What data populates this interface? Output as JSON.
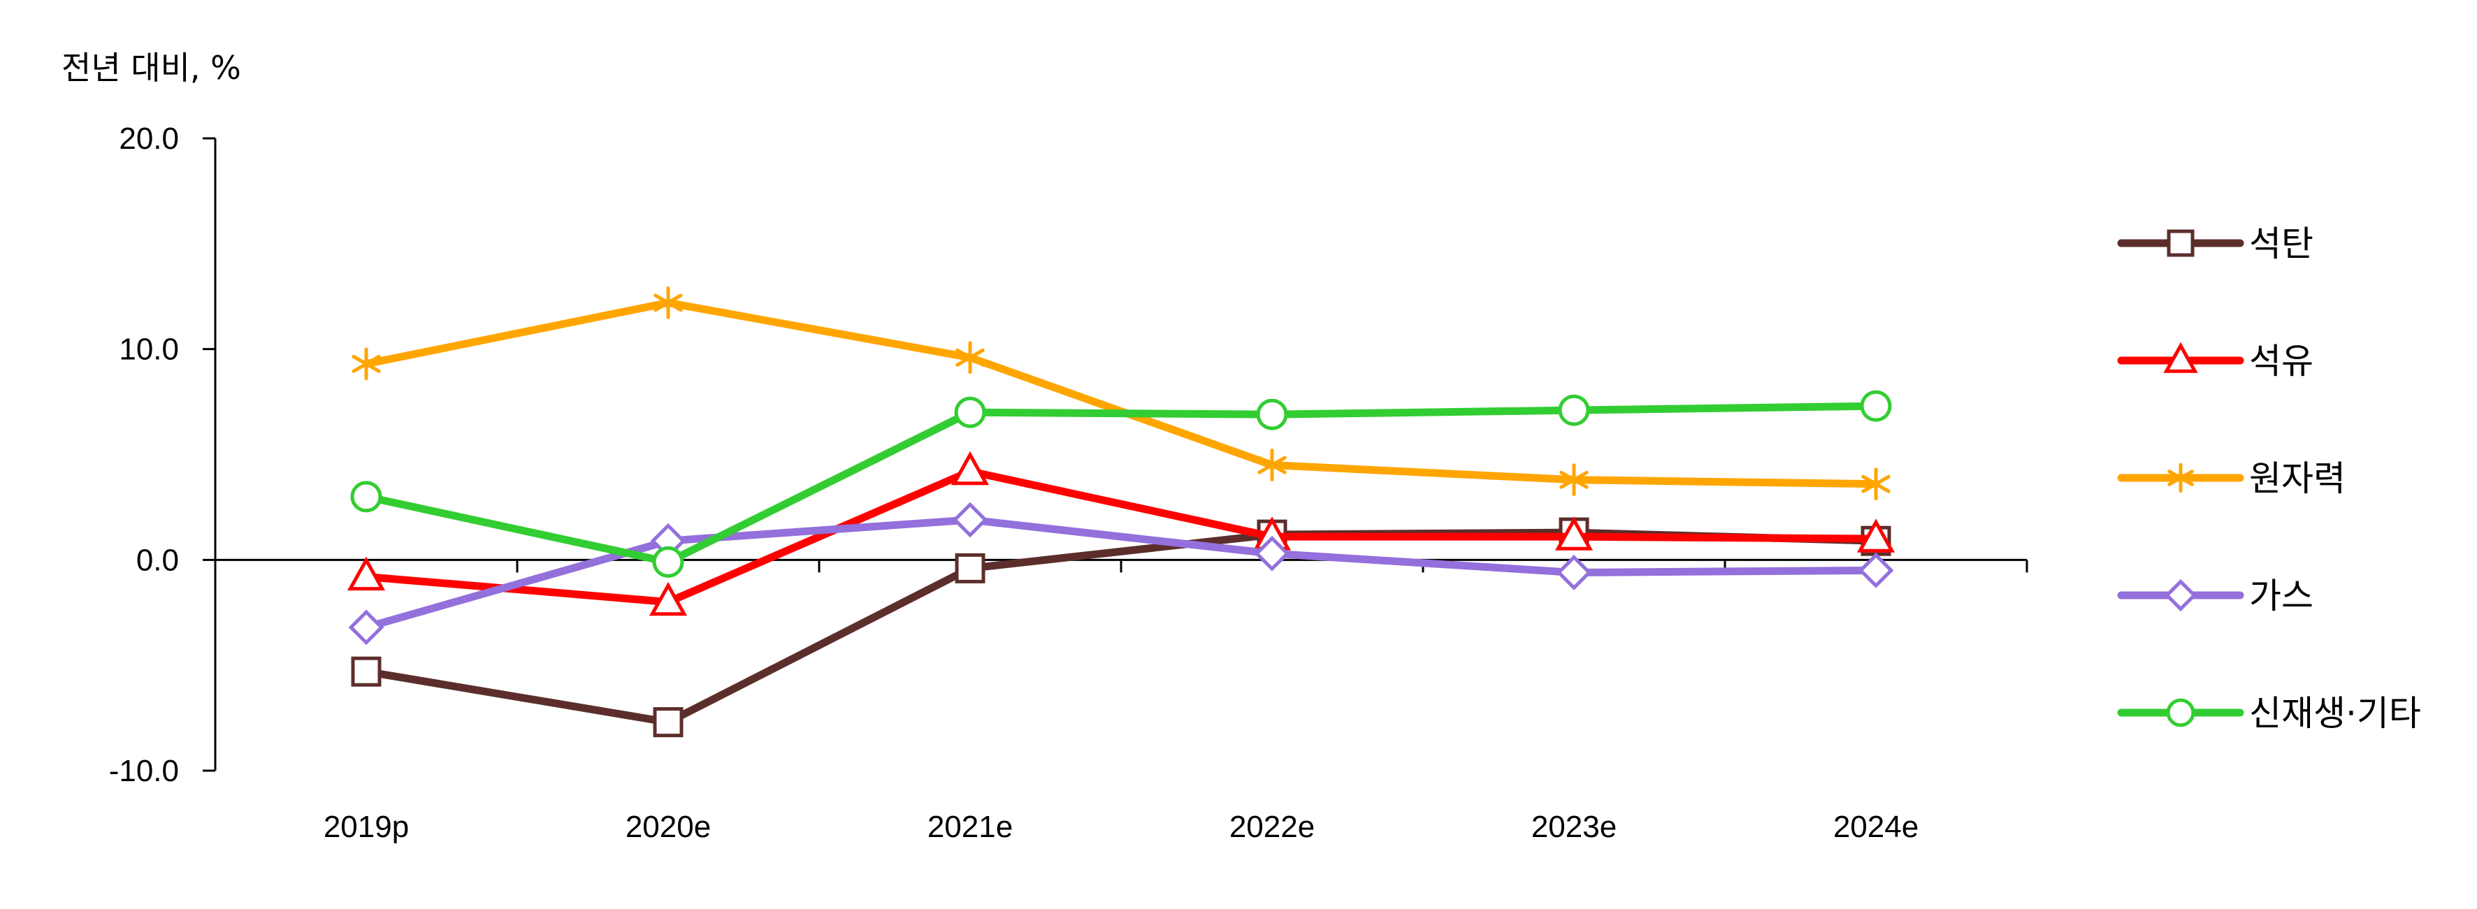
{
  "chart_data": {
    "type": "line",
    "title": "",
    "xlabel": "",
    "ylabel": "전년 대비, %",
    "categories": [
      "2019p",
      "2020e",
      "2021e",
      "2022e",
      "2023e",
      "2024e"
    ],
    "ylim": [
      -10.0,
      20.0
    ],
    "yticks": [
      "20.0",
      "10.0",
      "0.0",
      "-10.0"
    ],
    "grid": false,
    "legend_position": "right",
    "series": [
      {
        "name": "석탄",
        "color": "#5c2e2b",
        "marker": "square",
        "values": [
          -5.3,
          -7.7,
          -0.4,
          1.2,
          1.3,
          0.9
        ]
      },
      {
        "name": "석유",
        "color": "#ff0000",
        "marker": "triangle",
        "values": [
          -0.8,
          -2.0,
          4.2,
          1.1,
          1.1,
          1.0
        ]
      },
      {
        "name": "원자력",
        "color": "#ffa500",
        "marker": "asterisk",
        "values": [
          9.3,
          12.2,
          9.6,
          4.5,
          3.8,
          3.6
        ]
      },
      {
        "name": "가스",
        "color": "#9370db",
        "marker": "diamond",
        "values": [
          -3.2,
          0.9,
          1.9,
          0.3,
          -0.6,
          -0.5
        ]
      },
      {
        "name": "신재생·기타",
        "color": "#32cd32",
        "marker": "circle",
        "values": [
          3.0,
          -0.1,
          7.0,
          6.9,
          7.1,
          7.3
        ]
      }
    ]
  }
}
